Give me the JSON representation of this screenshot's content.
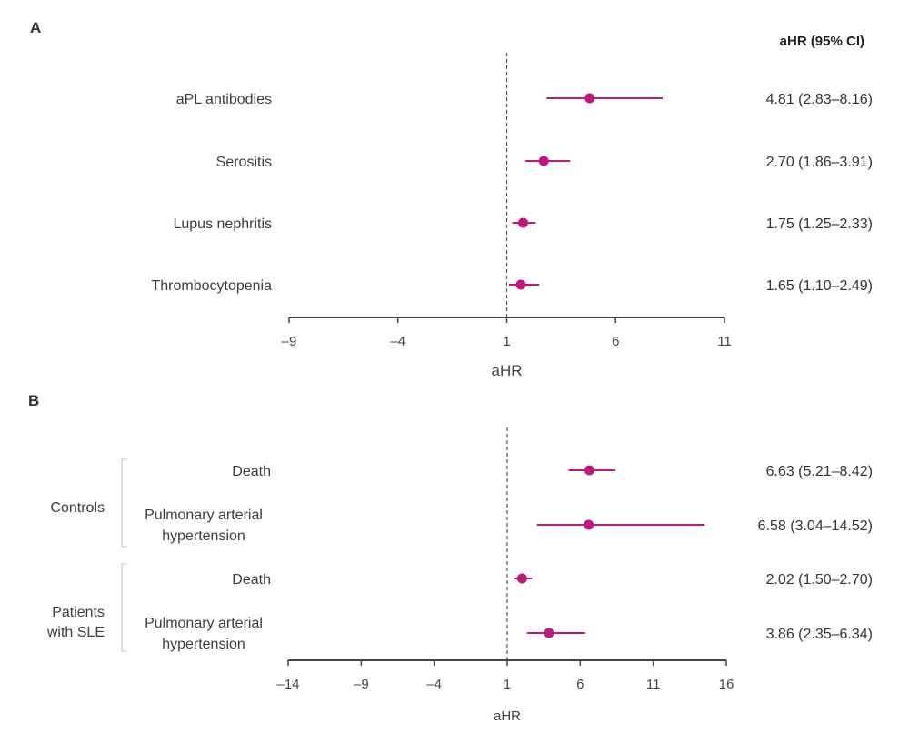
{
  "colors": {
    "marker": "#c0177f",
    "axis": "#444444",
    "refline": "#555555",
    "bracket": "#cccccc"
  },
  "chart_data": [
    {
      "type": "forest",
      "panel": "A",
      "column_header": "aHR (95% CI)",
      "xlabel": "aHR",
      "xlim": [
        -9,
        11
      ],
      "xticks": [
        -9,
        -4,
        1,
        6,
        11
      ],
      "xtick_labels": [
        "–9",
        "–4",
        "1",
        "6",
        "11"
      ],
      "reference_line": 1,
      "rows": [
        {
          "label": "aPL antibodies",
          "estimate": 4.81,
          "lower": 2.83,
          "upper": 8.16,
          "text": "4.81 (2.83–8.16)"
        },
        {
          "label": "Serositis",
          "estimate": 2.7,
          "lower": 1.86,
          "upper": 3.91,
          "text": "2.70 (1.86–3.91)"
        },
        {
          "label": "Lupus nephritis",
          "estimate": 1.75,
          "lower": 1.25,
          "upper": 2.33,
          "text": "1.75 (1.25–2.33)"
        },
        {
          "label": "Thrombocytopenia",
          "estimate": 1.65,
          "lower": 1.1,
          "upper": 2.49,
          "text": "1.65 (1.10–2.49)"
        }
      ]
    },
    {
      "type": "forest",
      "panel": "B",
      "xlabel": "aHR",
      "xlim": [
        -14,
        16
      ],
      "xticks": [
        -14,
        -9,
        -4,
        1,
        6,
        11,
        16
      ],
      "xtick_labels": [
        "–14",
        "–9",
        "–4",
        "1",
        "6",
        "11",
        "16"
      ],
      "reference_line": 1,
      "groups": [
        {
          "label_lines": [
            "Controls"
          ],
          "rows": [
            {
              "label_lines": [
                "Death"
              ],
              "estimate": 6.63,
              "lower": 5.21,
              "upper": 8.42,
              "text": "6.63 (5.21–8.42)"
            },
            {
              "label_lines": [
                "Pulmonary arterial",
                "hypertension"
              ],
              "estimate": 6.58,
              "lower": 3.04,
              "upper": 14.52,
              "text": "6.58 (3.04–14.52)"
            }
          ]
        },
        {
          "label_lines": [
            "Patients",
            "with SLE"
          ],
          "rows": [
            {
              "label_lines": [
                "Death"
              ],
              "estimate": 2.02,
              "lower": 1.5,
              "upper": 2.7,
              "text": "2.02 (1.50–2.70)"
            },
            {
              "label_lines": [
                "Pulmonary arterial",
                "hypertension"
              ],
              "estimate": 3.86,
              "lower": 2.35,
              "upper": 6.34,
              "text": "3.86 (2.35–6.34)"
            }
          ]
        }
      ]
    }
  ]
}
